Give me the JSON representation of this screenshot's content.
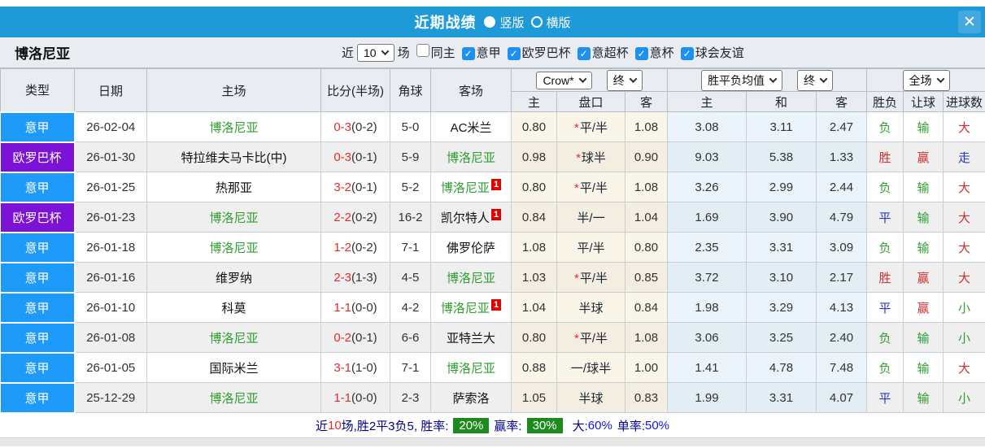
{
  "titlebar": {
    "title": "近期战绩",
    "layout_options": [
      {
        "label": "竖版",
        "selected": true
      },
      {
        "label": "横版",
        "selected": false
      }
    ],
    "close_glyph": "✕"
  },
  "filters": {
    "team": "博洛尼亚",
    "recent_label": "近",
    "recent_count": "10",
    "matches_label": "场",
    "check_glyph": "✓",
    "checkboxes": [
      {
        "label": "同主",
        "checked": false
      },
      {
        "label": "意甲",
        "checked": true
      },
      {
        "label": "欧罗巴杯",
        "checked": true
      },
      {
        "label": "意超杯",
        "checked": true
      },
      {
        "label": "意杯",
        "checked": true
      },
      {
        "label": "球会友谊",
        "checked": true
      }
    ]
  },
  "table": {
    "main_headers": [
      "类型",
      "日期",
      "主场",
      "比分(半场)",
      "角球",
      "客场"
    ],
    "selects": {
      "odds_source": "Crow*",
      "odds_time": "终",
      "avg_label": "胜平负均值",
      "avg_time": "终",
      "scope": "全场"
    },
    "sub_headers": [
      "主",
      "盘口",
      "客",
      "主",
      "和",
      "客",
      "胜负",
      "让球",
      "进球数"
    ],
    "rows": [
      {
        "league": "意甲",
        "league_color": "#1e9bfa",
        "date": "26-02-04",
        "home": "博洛尼亚",
        "home_green": true,
        "home_badge": "",
        "score": "0-3",
        "half": "(0-2)",
        "corners": "5-0",
        "away": "AC米兰",
        "away_green": false,
        "away_badge": "",
        "odds_home": "0.80",
        "star": true,
        "handicap": "平/半",
        "odds_away": "1.08",
        "avg_home": "3.08",
        "avg_draw": "3.11",
        "avg_away": "2.47",
        "result": "负",
        "handicap_result": "输",
        "goals": "大"
      },
      {
        "league": "欧罗巴杯",
        "league_color": "#7b12d6",
        "date": "26-01-30",
        "home": "特拉维夫马卡比(中)",
        "home_green": false,
        "home_badge": "",
        "score": "0-3",
        "half": "(0-1)",
        "corners": "5-9",
        "away": "博洛尼亚",
        "away_green": true,
        "away_badge": "",
        "odds_home": "0.98",
        "star": true,
        "handicap": "球半",
        "odds_away": "0.90",
        "avg_home": "9.03",
        "avg_draw": "5.38",
        "avg_away": "1.33",
        "result": "胜",
        "handicap_result": "赢",
        "goals": "走"
      },
      {
        "league": "意甲",
        "league_color": "#1e9bfa",
        "date": "26-01-25",
        "home": "热那亚",
        "home_green": false,
        "home_badge": "",
        "score": "3-2",
        "half": "(0-1)",
        "corners": "5-2",
        "away": "博洛尼亚",
        "away_green": true,
        "away_badge": "1",
        "odds_home": "0.80",
        "star": true,
        "handicap": "平/半",
        "odds_away": "1.08",
        "avg_home": "3.26",
        "avg_draw": "2.99",
        "avg_away": "2.44",
        "result": "负",
        "handicap_result": "输",
        "goals": "大"
      },
      {
        "league": "欧罗巴杯",
        "league_color": "#7b12d6",
        "date": "26-01-23",
        "home": "博洛尼亚",
        "home_green": true,
        "home_badge": "",
        "score": "2-2",
        "half": "(0-2)",
        "corners": "16-2",
        "away": "凯尔特人",
        "away_green": false,
        "away_badge": "1",
        "odds_home": "0.84",
        "star": false,
        "handicap": "半/一",
        "odds_away": "1.04",
        "avg_home": "1.69",
        "avg_draw": "3.90",
        "avg_away": "4.79",
        "result": "平",
        "handicap_result": "输",
        "goals": "大"
      },
      {
        "league": "意甲",
        "league_color": "#1e9bfa",
        "date": "26-01-18",
        "home": "博洛尼亚",
        "home_green": true,
        "home_badge": "",
        "score": "1-2",
        "half": "(0-2)",
        "corners": "7-1",
        "away": "佛罗伦萨",
        "away_green": false,
        "away_badge": "",
        "odds_home": "1.08",
        "star": false,
        "handicap": "平/半",
        "odds_away": "0.80",
        "avg_home": "2.35",
        "avg_draw": "3.31",
        "avg_away": "3.09",
        "result": "负",
        "handicap_result": "输",
        "goals": "大"
      },
      {
        "league": "意甲",
        "league_color": "#1e9bfa",
        "date": "26-01-16",
        "home": "维罗纳",
        "home_green": false,
        "home_badge": "",
        "score": "2-3",
        "half": "(1-3)",
        "corners": "4-5",
        "away": "博洛尼亚",
        "away_green": true,
        "away_badge": "",
        "odds_home": "1.03",
        "star": true,
        "handicap": "平/半",
        "odds_away": "0.85",
        "avg_home": "3.72",
        "avg_draw": "3.10",
        "avg_away": "2.17",
        "result": "胜",
        "handicap_result": "赢",
        "goals": "大"
      },
      {
        "league": "意甲",
        "league_color": "#1e9bfa",
        "date": "26-01-10",
        "home": "科莫",
        "home_green": false,
        "home_badge": "",
        "score": "1-1",
        "half": "(0-0)",
        "corners": "4-2",
        "away": "博洛尼亚",
        "away_green": true,
        "away_badge": "1",
        "odds_home": "1.04",
        "star": false,
        "handicap": "半球",
        "odds_away": "0.84",
        "avg_home": "1.98",
        "avg_draw": "3.29",
        "avg_away": "4.13",
        "result": "平",
        "handicap_result": "赢",
        "goals": "小"
      },
      {
        "league": "意甲",
        "league_color": "#1e9bfa",
        "date": "26-01-08",
        "home": "博洛尼亚",
        "home_green": true,
        "home_badge": "",
        "score": "0-2",
        "half": "(0-1)",
        "corners": "6-6",
        "away": "亚特兰大",
        "away_green": false,
        "away_badge": "",
        "odds_home": "0.80",
        "star": true,
        "handicap": "平/半",
        "odds_away": "1.08",
        "avg_home": "3.06",
        "avg_draw": "3.25",
        "avg_away": "2.40",
        "result": "负",
        "handicap_result": "输",
        "goals": "小"
      },
      {
        "league": "意甲",
        "league_color": "#1e9bfa",
        "date": "26-01-05",
        "home": "国际米兰",
        "home_green": false,
        "home_badge": "",
        "score": "3-1",
        "half": "(1-0)",
        "corners": "7-1",
        "away": "博洛尼亚",
        "away_green": true,
        "away_badge": "",
        "odds_home": "0.88",
        "star": false,
        "handicap": "一/球半",
        "odds_away": "1.00",
        "avg_home": "1.41",
        "avg_draw": "4.78",
        "avg_away": "7.48",
        "result": "负",
        "handicap_result": "输",
        "goals": "大"
      },
      {
        "league": "意甲",
        "league_color": "#1e9bfa",
        "date": "25-12-29",
        "home": "博洛尼亚",
        "home_green": true,
        "home_badge": "",
        "score": "1-1",
        "half": "(0-0)",
        "corners": "2-3",
        "away": "萨索洛",
        "away_green": false,
        "away_badge": "",
        "odds_home": "1.05",
        "star": false,
        "handicap": "半球",
        "odds_away": "0.83",
        "avg_home": "1.99",
        "avg_draw": "3.31",
        "avg_away": "4.07",
        "result": "平",
        "handicap_result": "输",
        "goals": "小"
      }
    ]
  },
  "summary": {
    "prefix": "近",
    "count": "10",
    "middle": "场,胜2平3负5, 胜率:",
    "win_rate": "20%",
    "profit_label": "赢率:",
    "profit_rate": "30%",
    "big_label": "大:",
    "big_rate": "60%",
    "single_label": "单率:",
    "single_rate": "50%"
  },
  "colors": {
    "titlebar_blue": "#1e9ad8",
    "serie_a_blue": "#1e9bfa",
    "europa_purple": "#7b12d6",
    "bologna_green": "#2f9e2f",
    "score_red": "#e42b2b",
    "summary_navy": "#00008b",
    "rate_green_box": "#1e8a1e",
    "result_map": {
      "胜": "#d03030",
      "平": "#2b35c8",
      "负": "#2f9e2f",
      "赢": "#d03030",
      "走": "#2b35c8",
      "输": "#2f9e2f",
      "大": "#d03030",
      "小": "#2f9e2f"
    }
  }
}
